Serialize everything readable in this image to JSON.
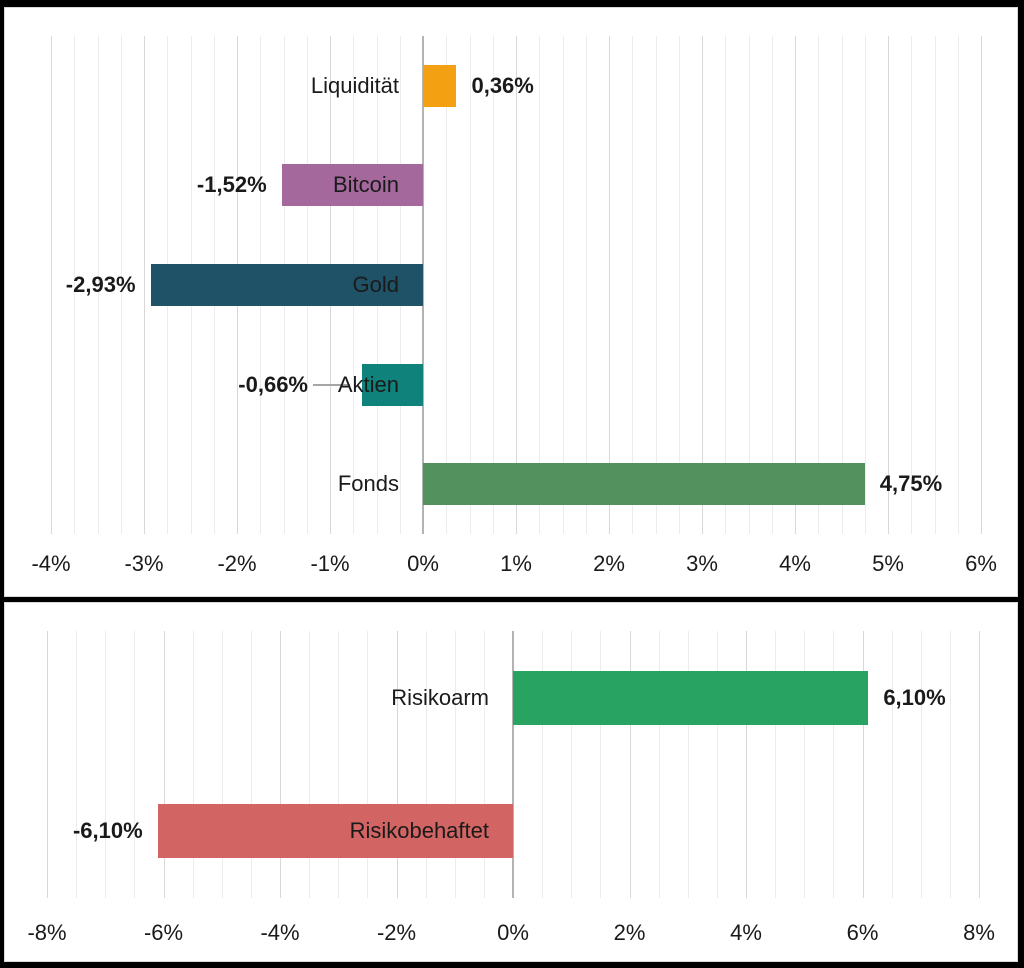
{
  "chart_data": [
    {
      "name": "asset-performance",
      "type": "bar",
      "orientation": "horizontal",
      "title": "",
      "legend": "none",
      "categories": [
        "Liquidität",
        "Bitcoin",
        "Gold",
        "Aktien",
        "Fonds"
      ],
      "values": [
        0.36,
        -1.52,
        -2.93,
        -0.66,
        4.75
      ],
      "value_labels": [
        "0,36%",
        "-1,52%",
        "-2,93%",
        "-0,66%",
        "4,75%"
      ],
      "bar_colors": [
        "#F3A112",
        "#A5689C",
        "#1F5266",
        "#0F827B",
        "#53925F"
      ],
      "xlim": [
        -4,
        6
      ],
      "tick_step": 1,
      "minor_step": 0.25,
      "tick_labels": [
        "-4%",
        "-3%",
        "-2%",
        "-1%",
        "0%",
        "1%",
        "2%",
        "3%",
        "4%",
        "5%",
        "6%"
      ],
      "grid": "vertical minor+major",
      "zero_axis": true,
      "leader_line_index": 3
    },
    {
      "name": "risk-comparison",
      "type": "bar",
      "orientation": "horizontal",
      "title": "",
      "legend": "none",
      "categories": [
        "Risikoarm",
        "Risikobehaftet"
      ],
      "values": [
        6.1,
        -6.1
      ],
      "value_labels": [
        "6,10%",
        "-6,10%"
      ],
      "bar_colors": [
        "#29A361",
        "#D26564"
      ],
      "xlim": [
        -8,
        8
      ],
      "tick_step": 2,
      "minor_step": 0.5,
      "tick_labels": [
        "-8%",
        "-6%",
        "-4%",
        "-2%",
        "0%",
        "2%",
        "4%",
        "6%",
        "8%"
      ],
      "grid": "vertical minor+major",
      "zero_axis": true,
      "leader_line_index": null
    }
  ],
  "colors": {
    "frame_background": "#000000",
    "panel_background": "#FFFFFF",
    "panel_border": "#D9D9D9",
    "grid_minor": "#ECECEC",
    "grid_major": "#D8D8D8",
    "zero_axis": "#B3B3B3",
    "leader_line": "#A6A6A6",
    "text": "#1A1A1A"
  }
}
